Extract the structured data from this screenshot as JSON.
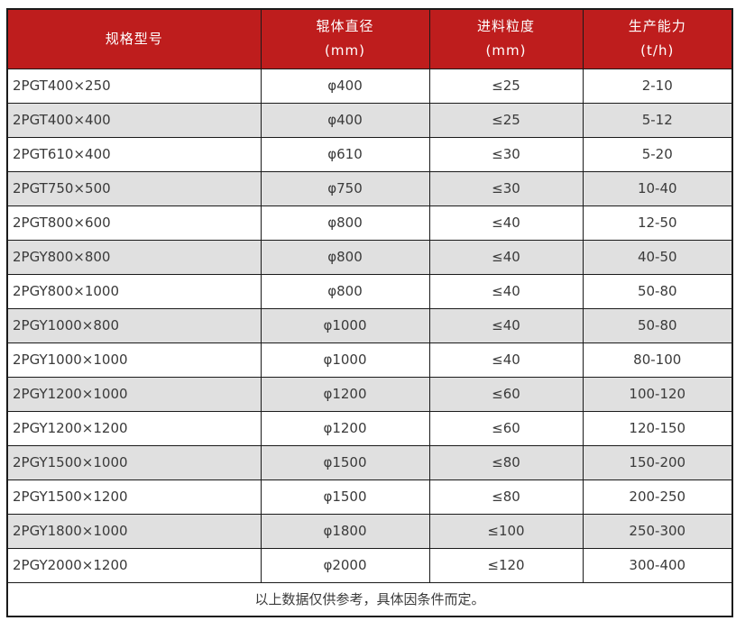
{
  "table": {
    "columns": [
      {
        "title": "规格型号",
        "unit": ""
      },
      {
        "title": "辊体直径",
        "unit": "(mm)"
      },
      {
        "title": "进料粒度",
        "unit": "(mm)"
      },
      {
        "title": "生产能力",
        "unit": "(t/h)"
      }
    ],
    "rows": [
      {
        "model": "2PGT400×250",
        "diameter": "φ400",
        "feed_size": "≤25",
        "capacity": "2-10"
      },
      {
        "model": "2PGT400×400",
        "diameter": "φ400",
        "feed_size": "≤25",
        "capacity": "5-12"
      },
      {
        "model": "2PGT610×400",
        "diameter": "φ610",
        "feed_size": "≤30",
        "capacity": "5-20"
      },
      {
        "model": "2PGT750×500",
        "diameter": "φ750",
        "feed_size": "≤30",
        "capacity": "10-40"
      },
      {
        "model": "2PGT800×600",
        "diameter": "φ800",
        "feed_size": "≤40",
        "capacity": "12-50"
      },
      {
        "model": "2PGY800×800",
        "diameter": "φ800",
        "feed_size": "≤40",
        "capacity": "40-50"
      },
      {
        "model": "2PGY800×1000",
        "diameter": "φ800",
        "feed_size": "≤40",
        "capacity": "50-80"
      },
      {
        "model": "2PGY1000×800",
        "diameter": "φ1000",
        "feed_size": "≤40",
        "capacity": "50-80"
      },
      {
        "model": "2PGY1000×1000",
        "diameter": "φ1000",
        "feed_size": "≤40",
        "capacity": "80-100"
      },
      {
        "model": "2PGY1200×1000",
        "diameter": "φ1200",
        "feed_size": "≤60",
        "capacity": "100-120"
      },
      {
        "model": "2PGY1200×1200",
        "diameter": "φ1200",
        "feed_size": "≤60",
        "capacity": "120-150"
      },
      {
        "model": "2PGY1500×1000",
        "diameter": "φ1500",
        "feed_size": "≤80",
        "capacity": "150-200"
      },
      {
        "model": "2PGY1500×1200",
        "diameter": "φ1500",
        "feed_size": "≤80",
        "capacity": "200-250"
      },
      {
        "model": "2PGY1800×1000",
        "diameter": "φ1800",
        "feed_size": "≤100",
        "capacity": "250-300"
      },
      {
        "model": "2PGY2000×1200",
        "diameter": "φ2000",
        "feed_size": "≤120",
        "capacity": "300-400"
      }
    ],
    "footer_note": "以上数据仅供参考，具体因条件而定。"
  },
  "colors": {
    "header_bg": "#be1d1d",
    "header_text": "#ffffff",
    "row_bg": "#ffffff",
    "row_alt_bg": "#e0e0e0",
    "border": "#1a1a1a",
    "text": "#3a3a3a"
  }
}
